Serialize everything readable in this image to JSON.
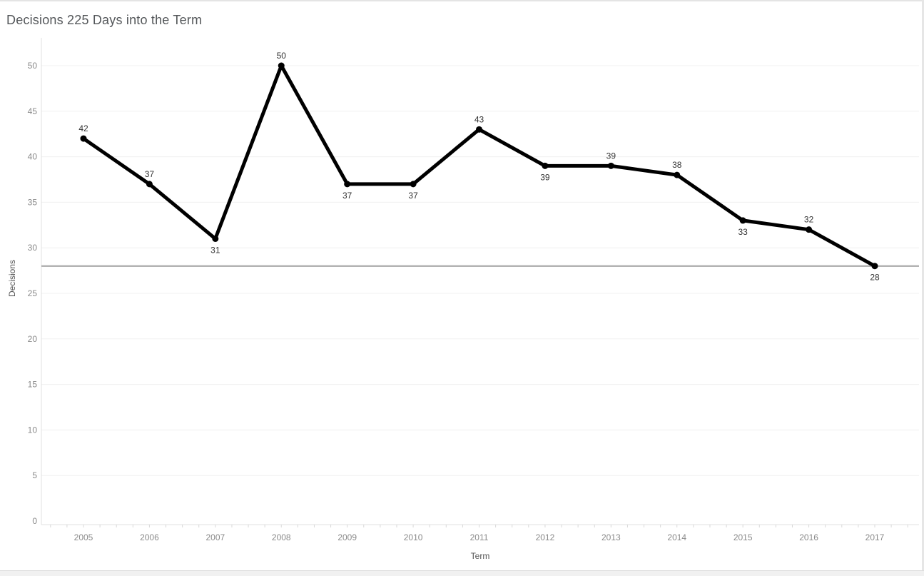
{
  "chart_data": {
    "type": "line",
    "title": "Decisions 225 Days into the Term",
    "xlabel": "Term",
    "ylabel": "Decisions",
    "categories": [
      "2005",
      "2006",
      "2007",
      "2008",
      "2009",
      "2010",
      "2011",
      "2012",
      "2013",
      "2014",
      "2015",
      "2016",
      "2017"
    ],
    "series": [
      {
        "name": "Decisions",
        "values": [
          42,
          37,
          31,
          50,
          37,
          37,
          43,
          39,
          39,
          38,
          33,
          32,
          28
        ]
      }
    ],
    "values": [
      42,
      37,
      31,
      50,
      37,
      37,
      43,
      39,
      39,
      38,
      33,
      32,
      28
    ],
    "data_label_positions": [
      "above",
      "above",
      "below",
      "above",
      "below",
      "below",
      "above",
      "below",
      "above",
      "above",
      "below",
      "above",
      "below"
    ],
    "reference_line_y": 28,
    "ylim": [
      0,
      50
    ],
    "yticks": [
      0,
      5,
      10,
      15,
      20,
      25,
      30,
      35,
      40,
      45,
      50
    ],
    "grid": true,
    "legend": "none",
    "colors": {
      "line": "#000000",
      "grid": "#f0f0f0",
      "reference_line": "#b3b3b3",
      "axis": "#e0e0e0",
      "minor_tick": "#d8d8d8",
      "tick_label": "#8a8a8a",
      "data_label": "#333333",
      "title": "#54575a",
      "axis_title": "#555555"
    }
  }
}
